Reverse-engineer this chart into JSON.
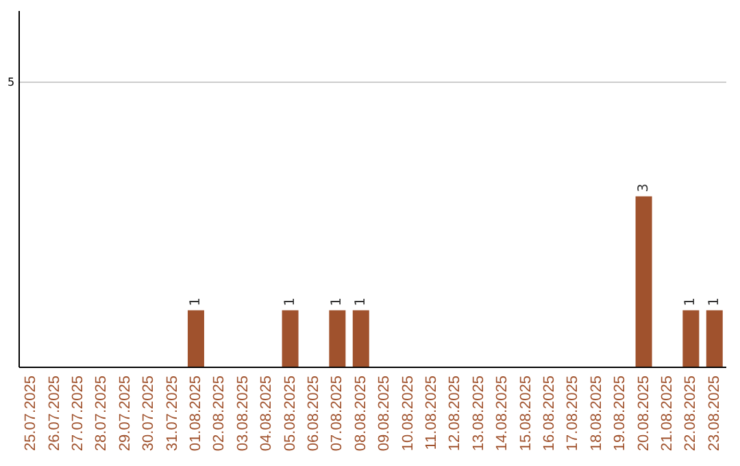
{
  "chart_data": {
    "type": "bar",
    "categories": [
      "25.07.2025",
      "26.07.2025",
      "27.07.2025",
      "28.07.2025",
      "29.07.2025",
      "30.07.2025",
      "31.07.2025",
      "01.08.2025",
      "02.08.2025",
      "03.08.2025",
      "04.08.2025",
      "05.08.2025",
      "06.08.2025",
      "07.08.2025",
      "08.08.2025",
      "09.08.2025",
      "10.08.2025",
      "11.08.2025",
      "12.08.2025",
      "13.08.2025",
      "14.08.2025",
      "15.08.2025",
      "16.08.2025",
      "17.08.2025",
      "18.08.2025",
      "19.08.2025",
      "20.08.2025",
      "21.08.2025",
      "22.08.2025",
      "23.08.2025"
    ],
    "values": [
      0,
      0,
      0,
      0,
      0,
      0,
      0,
      1,
      0,
      0,
      0,
      1,
      0,
      1,
      1,
      0,
      0,
      0,
      0,
      0,
      0,
      0,
      0,
      0,
      0,
      0,
      3,
      0,
      1,
      1
    ],
    "value_labels": [
      null,
      null,
      null,
      null,
      null,
      null,
      null,
      "1",
      null,
      null,
      null,
      "1",
      null,
      "1",
      "1",
      null,
      null,
      null,
      null,
      null,
      null,
      null,
      null,
      null,
      null,
      null,
      "3",
      null,
      "1",
      "1"
    ],
    "color": "#a0522d",
    "ylim": [
      0,
      6.25
    ],
    "yticks": [
      5
    ],
    "grid": "y"
  }
}
